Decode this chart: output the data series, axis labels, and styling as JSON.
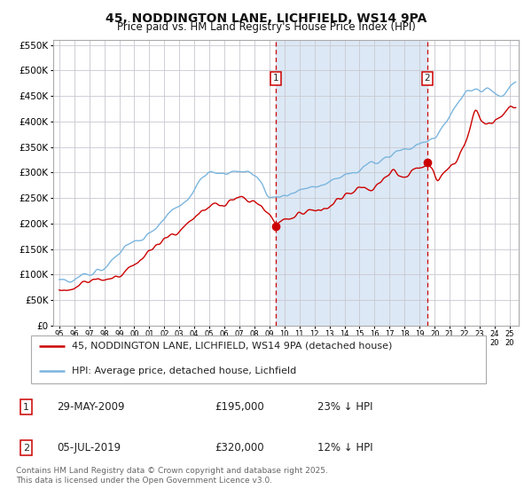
{
  "title": "45, NODDINGTON LANE, LICHFIELD, WS14 9PA",
  "subtitle": "Price paid vs. HM Land Registry's House Price Index (HPI)",
  "legend_line1": "45, NODDINGTON LANE, LICHFIELD, WS14 9PA (detached house)",
  "legend_line2": "HPI: Average price, detached house, Lichfield",
  "marker1_date": "29-MAY-2009",
  "marker1_price": 195000,
  "marker1_label": "23% ↓ HPI",
  "marker1_x": 2009.41,
  "marker2_date": "05-JUL-2019",
  "marker2_price": 320000,
  "marker2_label": "12% ↓ HPI",
  "marker2_x": 2019.51,
  "ylim": [
    0,
    560000
  ],
  "xlim_start": 1994.6,
  "xlim_end": 2025.6,
  "yticks": [
    0,
    50000,
    100000,
    150000,
    200000,
    250000,
    300000,
    350000,
    400000,
    450000,
    500000,
    550000
  ],
  "ytick_labels": [
    "£0",
    "£50K",
    "£100K",
    "£150K",
    "£200K",
    "£250K",
    "£300K",
    "£350K",
    "£400K",
    "£450K",
    "£500K",
    "£550K"
  ],
  "grid_color": "#c8c8d0",
  "hpi_color": "#7ab5de",
  "price_color": "#cc0000",
  "background_color": "#ffffff",
  "shade_color": "#dce8f5",
  "copyright_text": "Contains HM Land Registry data © Crown copyright and database right 2025.\nThis data is licensed under the Open Government Licence v3.0.",
  "xtick_years": [
    1995,
    1996,
    1997,
    1998,
    1999,
    2000,
    2001,
    2002,
    2003,
    2004,
    2005,
    2006,
    2007,
    2008,
    2009,
    2010,
    2011,
    2012,
    2013,
    2014,
    2015,
    2016,
    2017,
    2018,
    2019,
    2020,
    2021,
    2022,
    2023,
    2024,
    2025
  ]
}
